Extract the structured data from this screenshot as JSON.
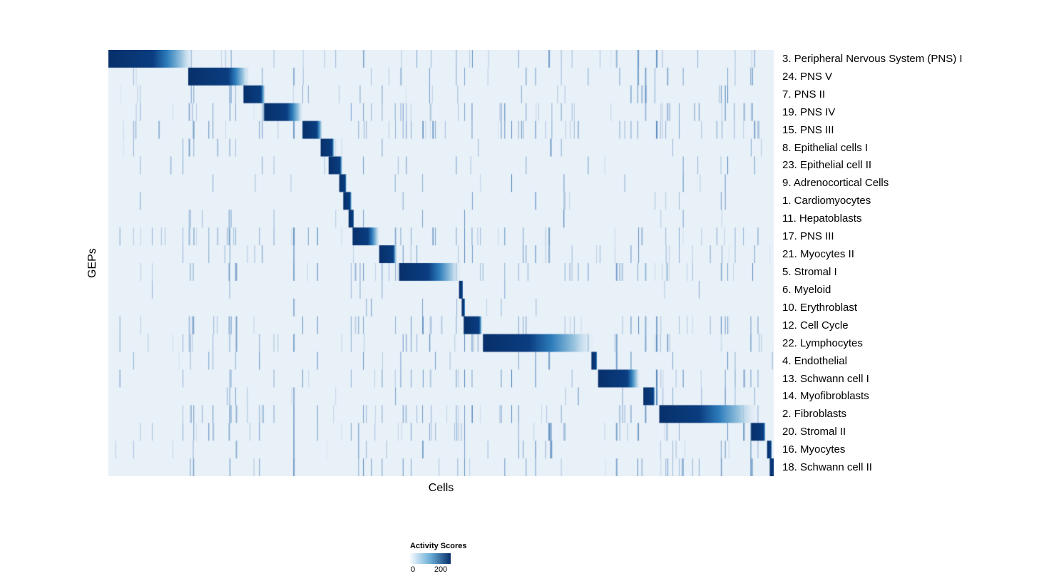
{
  "chart_data": {
    "type": "heatmap",
    "title": "",
    "xlabel": "Cells",
    "ylabel": "GEPs",
    "background": "#e8f0f8",
    "colormap": {
      "name": "Blues",
      "low": "#f7fbff",
      "mid": "#6baed6",
      "high": "#08306b"
    },
    "legend": {
      "title": "Activity Scores",
      "min": 0,
      "max": 200,
      "min_label": "0",
      "max_label": "200",
      "position": "bottom"
    },
    "x_axis": {
      "ticks": "none",
      "units": "cells sorted by assigned GEP"
    },
    "rows": [
      {
        "label": "3. Peripheral Nervous System (PNS) I",
        "start": 0.0,
        "solid": 0.067,
        "fade": 0.129,
        "noise": 0.35
      },
      {
        "label": "24. PNS V",
        "start": 0.12,
        "solid": 0.18,
        "fade": 0.212,
        "noise": 0.3
      },
      {
        "label": "7. PNS II",
        "start": 0.203,
        "solid": 0.229,
        "fade": 0.236,
        "noise": 0.35
      },
      {
        "label": "19. PNS IV",
        "start": 0.234,
        "solid": 0.268,
        "fade": 0.293,
        "noise": 0.5
      },
      {
        "label": "15. PNS III",
        "start": 0.292,
        "solid": 0.313,
        "fade": 0.322,
        "noise": 0.55
      },
      {
        "label": "8. Epithelial cells I",
        "start": 0.319,
        "solid": 0.336,
        "fade": 0.34,
        "noise": 0.15
      },
      {
        "label": "23. Epithelial cell II",
        "start": 0.331,
        "solid": 0.348,
        "fade": 0.352,
        "noise": 0.2
      },
      {
        "label": "9. Adrenocortical Cells",
        "start": 0.347,
        "solid": 0.356,
        "fade": 0.358,
        "noise": 0.1
      },
      {
        "label": "1. Cardiomyocytes",
        "start": 0.353,
        "solid": 0.363,
        "fade": 0.366,
        "noise": 0.15
      },
      {
        "label": "11. Hepatoblasts",
        "start": 0.361,
        "solid": 0.368,
        "fade": 0.369,
        "noise": 0.1
      },
      {
        "label": "17. PNS III",
        "start": 0.367,
        "solid": 0.39,
        "fade": 0.408,
        "noise": 0.45
      },
      {
        "label": "21. Myocytes II",
        "start": 0.407,
        "solid": 0.428,
        "fade": 0.433,
        "noise": 0.3
      },
      {
        "label": "5. Stromal I",
        "start": 0.437,
        "solid": 0.48,
        "fade": 0.53,
        "noise": 0.35
      },
      {
        "label": "6. Myeloid",
        "start": 0.527,
        "solid": 0.532,
        "fade": 0.533,
        "noise": 0.1
      },
      {
        "label": "10. Erythroblast",
        "start": 0.531,
        "solid": 0.535,
        "fade": 0.536,
        "noise": 0.1
      },
      {
        "label": "12. Cell Cycle",
        "start": 0.534,
        "solid": 0.557,
        "fade": 0.562,
        "noise": 0.55
      },
      {
        "label": "22. Lymphocytes",
        "start": 0.563,
        "solid": 0.632,
        "fade": 0.731,
        "noise": 0.5
      },
      {
        "label": "4. Endothelial",
        "start": 0.726,
        "solid": 0.733,
        "fade": 0.735,
        "noise": 0.15
      },
      {
        "label": "13. Schwann cell I",
        "start": 0.736,
        "solid": 0.78,
        "fade": 0.799,
        "noise": 0.4
      },
      {
        "label": "14. Myofibroblasts",
        "start": 0.804,
        "solid": 0.819,
        "fade": 0.822,
        "noise": 0.2
      },
      {
        "label": "2. Fibroblasts",
        "start": 0.828,
        "solid": 0.888,
        "fade": 0.975,
        "noise": 0.45
      },
      {
        "label": "20. Stromal II",
        "start": 0.966,
        "solid": 0.985,
        "fade": 0.988,
        "noise": 0.45
      },
      {
        "label": "16. Myocytes",
        "start": 0.99,
        "solid": 0.996,
        "fade": 0.997,
        "noise": 0.25
      },
      {
        "label": "18. Schwann cell II",
        "start": 0.994,
        "solid": 1.0,
        "fade": 1.0,
        "noise": 0.35
      }
    ]
  }
}
